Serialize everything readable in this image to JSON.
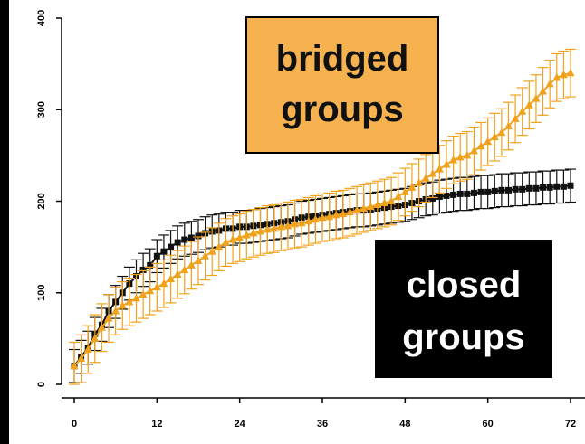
{
  "chart_data": {
    "type": "line",
    "title": "",
    "xlabel": "",
    "ylabel": "",
    "xlim": [
      0,
      72
    ],
    "ylim": [
      0,
      400
    ],
    "x_ticks": [
      "0",
      "12",
      "24",
      "36",
      "48",
      "60",
      "72"
    ],
    "y_ticks": [
      "0",
      "100",
      "200",
      "300",
      "400"
    ],
    "grid": false,
    "series": [
      {
        "label_text": "closed groups",
        "color": "#111111",
        "marker": "square",
        "x": [
          0,
          1,
          2,
          3,
          4,
          5,
          6,
          7,
          8,
          9,
          10,
          11,
          12,
          13,
          14,
          15,
          16,
          17,
          18,
          19,
          20,
          21,
          22,
          23,
          24,
          25,
          26,
          27,
          28,
          29,
          30,
          31,
          32,
          33,
          34,
          35,
          36,
          37,
          38,
          39,
          40,
          41,
          42,
          43,
          44,
          45,
          46,
          47,
          48,
          49,
          50,
          51,
          52,
          53,
          54,
          55,
          56,
          57,
          58,
          59,
          60,
          61,
          62,
          63,
          64,
          65,
          66,
          67,
          68,
          69,
          70,
          71,
          72
        ],
        "values": [
          20,
          30,
          40,
          55,
          65,
          80,
          90,
          100,
          110,
          118,
          125,
          130,
          140,
          145,
          150,
          155,
          158,
          160,
          162,
          165,
          167,
          168,
          170,
          170,
          172,
          172,
          173,
          174,
          175,
          176,
          177,
          178,
          180,
          182,
          183,
          184,
          185,
          186,
          187,
          188,
          189,
          190,
          190,
          191,
          192,
          193,
          194,
          195,
          196,
          198,
          200,
          202,
          203,
          205,
          206,
          207,
          208,
          208,
          209,
          210,
          210,
          211,
          212,
          212,
          213,
          213,
          214,
          214,
          215,
          215,
          216,
          216,
          217
        ],
        "error": 18
      },
      {
        "label_text": "bridged groups",
        "color": "#F0A21C",
        "marker": "triangle",
        "x": [
          0,
          1,
          2,
          3,
          4,
          5,
          6,
          7,
          8,
          9,
          10,
          11,
          12,
          13,
          14,
          15,
          16,
          17,
          18,
          19,
          20,
          21,
          22,
          23,
          24,
          25,
          26,
          27,
          28,
          29,
          30,
          31,
          32,
          33,
          34,
          35,
          36,
          37,
          38,
          39,
          40,
          41,
          42,
          43,
          44,
          45,
          46,
          47,
          48,
          49,
          50,
          51,
          52,
          53,
          54,
          55,
          56,
          57,
          58,
          59,
          60,
          61,
          62,
          63,
          64,
          65,
          66,
          67,
          68,
          69,
          70,
          71,
          72
        ],
        "values": [
          20,
          28,
          38,
          50,
          62,
          72,
          80,
          86,
          90,
          94,
          98,
          102,
          106,
          110,
          115,
          120,
          125,
          130,
          135,
          140,
          145,
          150,
          155,
          158,
          160,
          163,
          165,
          167,
          169,
          170,
          172,
          173,
          175,
          176,
          178,
          180,
          182,
          183,
          185,
          186,
          188,
          190,
          192,
          194,
          196,
          198,
          200,
          205,
          210,
          215,
          220,
          225,
          230,
          235,
          240,
          245,
          248,
          250,
          255,
          260,
          265,
          270,
          275,
          282,
          290,
          298,
          305,
          312,
          320,
          328,
          335,
          338,
          340
        ],
        "error": 26
      }
    ]
  }
}
